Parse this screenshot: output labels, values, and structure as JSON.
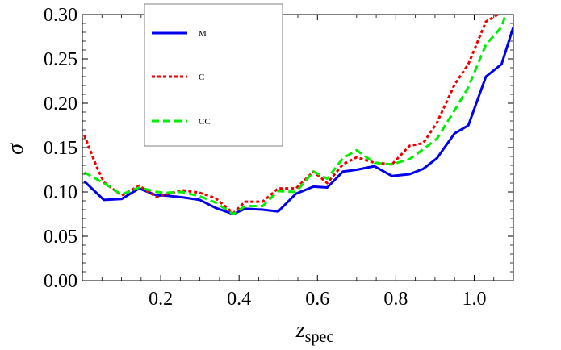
{
  "chart_data": {
    "type": "line",
    "title": "",
    "xlabel": "z",
    "xlabel_subscript": "spec",
    "ylabel": "σ",
    "xlim": [
      0.0,
      1.1
    ],
    "ylim": [
      0.0,
      0.3
    ],
    "x_ticks": [
      0.2,
      0.4,
      0.6,
      0.8,
      1.0
    ],
    "x_tick_labels": [
      "0.2",
      "0.4",
      "0.6",
      "0.8",
      "1.0"
    ],
    "y_ticks": [
      0.0,
      0.05,
      0.1,
      0.15,
      0.2,
      0.25,
      0.3
    ],
    "y_tick_labels": [
      "0.00",
      "0.05",
      "0.10",
      "0.15",
      "0.20",
      "0.25",
      "0.30"
    ],
    "grid": false,
    "legend_position": "top-left",
    "series": [
      {
        "name": "M",
        "color": "#0000ee",
        "style": "solid",
        "x": [
          0.005,
          0.055,
          0.1,
          0.145,
          0.19,
          0.21,
          0.255,
          0.3,
          0.34,
          0.385,
          0.415,
          0.46,
          0.5,
          0.545,
          0.59,
          0.625,
          0.665,
          0.7,
          0.745,
          0.79,
          0.835,
          0.87,
          0.905,
          0.95,
          0.985,
          1.03,
          1.07,
          1.1
        ],
        "y": [
          0.112,
          0.091,
          0.092,
          0.104,
          0.096,
          0.096,
          0.094,
          0.091,
          0.082,
          0.075,
          0.081,
          0.08,
          0.078,
          0.098,
          0.106,
          0.105,
          0.123,
          0.125,
          0.129,
          0.118,
          0.12,
          0.126,
          0.138,
          0.166,
          0.175,
          0.23,
          0.244,
          0.286
        ]
      },
      {
        "name": "C",
        "color": "#ee0000",
        "style": "dotted",
        "x": [
          0.005,
          0.035,
          0.055,
          0.1,
          0.145,
          0.19,
          0.21,
          0.255,
          0.3,
          0.34,
          0.385,
          0.415,
          0.46,
          0.5,
          0.545,
          0.59,
          0.625,
          0.665,
          0.7,
          0.745,
          0.79,
          0.835,
          0.87,
          0.905,
          0.95,
          0.985,
          1.03,
          1.06
        ],
        "y": [
          0.164,
          0.13,
          0.111,
          0.096,
          0.107,
          0.094,
          0.097,
          0.102,
          0.099,
          0.093,
          0.076,
          0.089,
          0.089,
          0.104,
          0.104,
          0.123,
          0.11,
          0.131,
          0.139,
          0.133,
          0.131,
          0.152,
          0.155,
          0.178,
          0.221,
          0.244,
          0.292,
          0.3
        ]
      },
      {
        "name": "CC",
        "color": "#00ee00",
        "style": "dashed",
        "x": [
          0.005,
          0.055,
          0.1,
          0.145,
          0.19,
          0.21,
          0.255,
          0.3,
          0.34,
          0.385,
          0.415,
          0.46,
          0.5,
          0.545,
          0.59,
          0.625,
          0.665,
          0.7,
          0.745,
          0.79,
          0.835,
          0.87,
          0.905,
          0.95,
          0.985,
          1.03,
          1.07,
          1.08
        ],
        "y": [
          0.122,
          0.11,
          0.097,
          0.105,
          0.1,
          0.099,
          0.1,
          0.095,
          0.088,
          0.075,
          0.084,
          0.084,
          0.101,
          0.1,
          0.123,
          0.115,
          0.138,
          0.147,
          0.133,
          0.131,
          0.137,
          0.148,
          0.16,
          0.192,
          0.218,
          0.266,
          0.286,
          0.3
        ]
      }
    ]
  }
}
